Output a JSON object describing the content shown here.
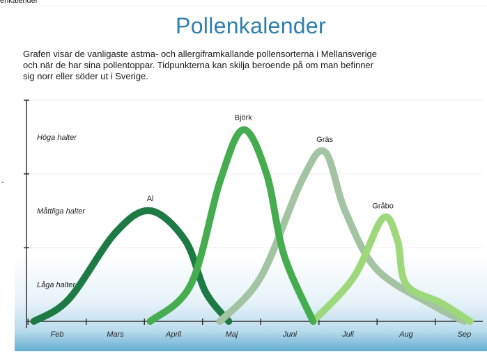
{
  "page": {
    "top_caption": "enkalender",
    "side_mark": "-"
  },
  "title": "Pollenkalender",
  "description": [
    "Grafen visar de vanligaste astma- och allergiframkallande pollensorterna i Mellansverige",
    "och när de har sina pollentoppar. Tidpunkterna kan skilja beroende på om man befinner",
    "sig norr eller söder ut i Sverige."
  ],
  "colors": {
    "Al": "#1e7a45",
    "Björk": "#45ad4f",
    "Gräs": "#a3c4a3",
    "Gråbo": "#9ed87a",
    "axis": "#333333",
    "gridline": "#eeeeee",
    "title": "#2f7fae"
  },
  "chart_data": {
    "type": "line",
    "title": "Pollenkalender",
    "x_categories": [
      "Feb",
      "Mars",
      "April",
      "Maj",
      "Juni",
      "Juli",
      "Aug",
      "Sep"
    ],
    "y_levels": [
      "Låga halter",
      "Måttliga halter",
      "Höga halter"
    ],
    "ylim": [
      0,
      3
    ],
    "grid": true,
    "series": [
      {
        "name": "Al",
        "points": [
          [
            -0.4,
            0.0
          ],
          [
            0.2,
            0.3
          ],
          [
            1.0,
            1.2
          ],
          [
            1.6,
            1.5
          ],
          [
            2.2,
            1.1
          ],
          [
            2.55,
            0.4
          ],
          [
            2.95,
            0.0
          ]
        ]
      },
      {
        "name": "Björk",
        "points": [
          [
            1.6,
            0.0
          ],
          [
            2.3,
            0.5
          ],
          [
            2.8,
            1.9
          ],
          [
            3.2,
            2.6
          ],
          [
            3.6,
            2.0
          ],
          [
            3.9,
            0.9
          ],
          [
            4.4,
            0.0
          ]
        ]
      },
      {
        "name": "Gräs",
        "points": [
          [
            2.8,
            0.0
          ],
          [
            3.5,
            0.6
          ],
          [
            4.2,
            1.9
          ],
          [
            4.6,
            2.3
          ],
          [
            4.95,
            1.5
          ],
          [
            5.5,
            0.7
          ],
          [
            6.5,
            0.2
          ],
          [
            7.0,
            0.0
          ]
        ]
      },
      {
        "name": "Gråbo",
        "points": [
          [
            4.4,
            0.0
          ],
          [
            5.1,
            0.6
          ],
          [
            5.6,
            1.4
          ],
          [
            5.85,
            1.1
          ],
          [
            6.0,
            0.5
          ],
          [
            6.6,
            0.25
          ],
          [
            7.1,
            0.0
          ]
        ]
      }
    ]
  }
}
